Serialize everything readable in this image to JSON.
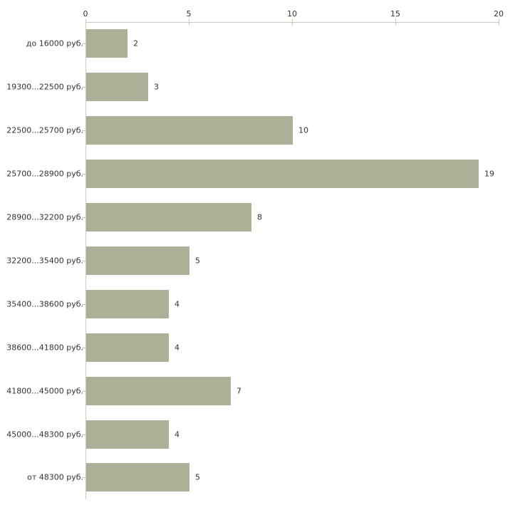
{
  "chart_data": {
    "type": "bar",
    "orientation": "horizontal",
    "title": "",
    "xlabel": "",
    "ylabel": "",
    "categories": [
      "до 16000 руб.",
      "19300...22500 руб.",
      "22500...25700 руб.",
      "25700...28900 руб.",
      "28900...32200 руб.",
      "32200...35400 руб.",
      "35400...38600 руб.",
      "38600...41800 руб.",
      "41800...45000 руб.",
      "45000...48300 руб.",
      "от 48300 руб."
    ],
    "values": [
      2,
      3,
      10,
      19,
      8,
      5,
      4,
      4,
      7,
      4,
      5
    ],
    "value_labels": [
      "2",
      "3",
      "10",
      "19",
      "8",
      "5",
      "4",
      "4",
      "7",
      "4",
      "5"
    ],
    "xlim": [
      0,
      20
    ],
    "x_ticks": [
      0,
      5,
      10,
      15,
      20
    ],
    "x_tick_labels": [
      "0",
      "5",
      "10",
      "15",
      "20"
    ],
    "axis_position": "top",
    "grid": false,
    "legend": false,
    "colors": {
      "bar_fill": "#abb197",
      "axis_line": "#c9c9c3",
      "tick_mark": "#c3c7a6",
      "text": "#333333",
      "background": "#ffffff"
    }
  }
}
